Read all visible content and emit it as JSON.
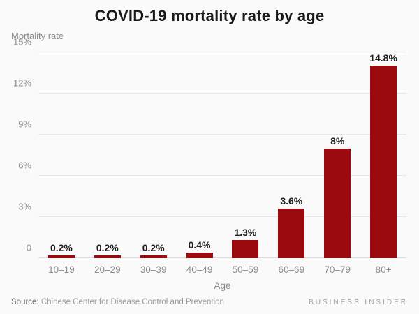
{
  "title": "COVID-19 mortality rate by age",
  "footer": {
    "source_prefix": "Source:",
    "source_text": " Chinese Center for Disease Control and Prevention",
    "brand": "BUSINESS INSIDER"
  },
  "colors": {
    "bar": "#9b0a0e",
    "title_text": "#1a1a1a",
    "data_label": "#1d1d1d",
    "axis_text": "#8c8c8c",
    "gridline": "#e7e7e7",
    "background": "#fafafa"
  },
  "chart_data": {
    "type": "bar",
    "title": "COVID-19 mortality rate by age",
    "xlabel": "Age",
    "ylabel": "Mortality rate",
    "categories": [
      "10–19",
      "20–29",
      "30–39",
      "40–49",
      "50–59",
      "60–69",
      "70–79",
      "80+"
    ],
    "values": [
      0.2,
      0.2,
      0.2,
      0.4,
      1.3,
      3.6,
      8,
      14.8
    ],
    "bar_labels": [
      "0.2%",
      "0.2%",
      "0.2%",
      "0.4%",
      "1.3%",
      "3.6%",
      "8%",
      "14.8%"
    ],
    "ylim": [
      0,
      15
    ],
    "yticks": [
      0,
      3,
      6,
      9,
      12,
      15
    ],
    "ytick_labels": [
      "0",
      "3%",
      "6%",
      "9%",
      "12%",
      "15%"
    ],
    "grid": true,
    "legend": false
  }
}
